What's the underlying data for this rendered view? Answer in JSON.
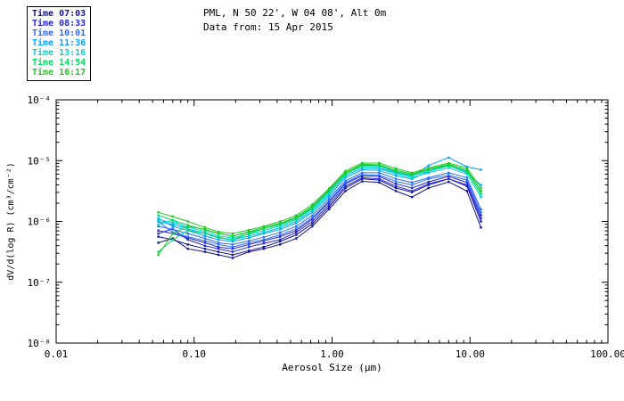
{
  "title": {
    "line1": "PML, N 50 22', W 04 08', Alt 0m",
    "line2": "Data from: 15 Apr 2015"
  },
  "legend": {
    "items": [
      {
        "label": "Time 07:03",
        "color": "#12128f"
      },
      {
        "label": "Time 08:33",
        "color": "#2222dd"
      },
      {
        "label": "Time 10:01",
        "color": "#2b6bff"
      },
      {
        "label": "Time 11:36",
        "color": "#00a2ff"
      },
      {
        "label": "Time 13:16",
        "color": "#00d4c8"
      },
      {
        "label": "Time 14:54",
        "color": "#00d964"
      },
      {
        "label": "Time 16:17",
        "color": "#1fc81f"
      }
    ]
  },
  "chart_data": {
    "type": "line",
    "title": "PML, N 50 22', W 04 08', Alt 0m",
    "subtitle": "Data from: 15 Apr 2015",
    "xlabel": "Aerosol Size (μm)",
    "ylabel": "dV/d(log R) (cm³/cm⁻²)",
    "xscale": "log",
    "yscale": "log",
    "xlim": [
      0.01,
      100
    ],
    "ylim": [
      1e-08,
      0.0001
    ],
    "grid": false,
    "legend_position": "top-left",
    "xticks": [
      {
        "v": 0.01,
        "label": "0.01"
      },
      {
        "v": 0.1,
        "label": "0.10"
      },
      {
        "v": 1,
        "label": "1.00"
      },
      {
        "v": 10,
        "label": "10.00"
      },
      {
        "v": 100,
        "label": "100.00"
      }
    ],
    "yticks": [
      {
        "exp": -4,
        "label": "10⁻⁴"
      },
      {
        "exp": -5,
        "label": "10⁻⁵"
      },
      {
        "exp": -6,
        "label": "10⁻⁶"
      },
      {
        "exp": -7,
        "label": "10⁻⁷"
      },
      {
        "exp": -8,
        "label": "10⁻⁸"
      }
    ],
    "x": [
      0.055,
      0.07,
      0.09,
      0.12,
      0.15,
      0.19,
      0.25,
      0.32,
      0.42,
      0.55,
      0.72,
      0.95,
      1.25,
      1.65,
      2.2,
      2.9,
      3.8,
      5.0,
      7.0,
      9.5,
      12.0
    ],
    "series": [
      {
        "name": "Time 07:03",
        "color": "#12128f",
        "logy": [
          -6.25,
          -6.3,
          -6.38,
          -6.45,
          -6.5,
          -6.55,
          -6.48,
          -6.42,
          -6.33,
          -6.22,
          -6.04,
          -5.76,
          -5.45,
          -5.3,
          -5.32,
          -5.45,
          -5.52,
          -5.4,
          -5.3,
          -5.42,
          -6.0
        ]
      },
      {
        "name": "Time 07:03",
        "color": "#12128f",
        "logy": [
          -6.35,
          -6.28,
          -6.45,
          -6.5,
          -6.55,
          -6.6,
          -6.5,
          -6.45,
          -6.38,
          -6.28,
          -6.08,
          -5.8,
          -5.5,
          -5.34,
          -5.36,
          -5.5,
          -5.6,
          -5.45,
          -5.35,
          -5.5,
          -6.1
        ]
      },
      {
        "name": "Time 08:33",
        "color": "#2222dd",
        "logy": [
          -6.15,
          -6.2,
          -6.27,
          -6.35,
          -6.42,
          -6.45,
          -6.38,
          -6.32,
          -6.25,
          -6.15,
          -5.96,
          -5.68,
          -5.38,
          -5.25,
          -5.26,
          -5.38,
          -5.45,
          -5.35,
          -5.26,
          -5.36,
          -5.9
        ]
      },
      {
        "name": "Time 08:33",
        "color": "#2222dd",
        "logy": [
          -6.2,
          -6.12,
          -6.3,
          -6.4,
          -6.45,
          -6.5,
          -6.42,
          -6.36,
          -6.3,
          -6.18,
          -6.0,
          -5.72,
          -5.42,
          -5.28,
          -5.3,
          -5.42,
          -5.5,
          -5.38,
          -5.3,
          -5.4,
          -5.95
        ]
      },
      {
        "name": "Time 10:01",
        "color": "#2b6bff",
        "logy": [
          -6.08,
          -6.13,
          -6.2,
          -6.28,
          -6.35,
          -6.38,
          -6.32,
          -6.26,
          -6.18,
          -6.08,
          -5.9,
          -5.62,
          -5.33,
          -5.2,
          -5.2,
          -5.3,
          -5.36,
          -5.28,
          -5.2,
          -5.28,
          -5.8
        ]
      },
      {
        "name": "Time 10:01",
        "color": "#2b6bff",
        "logy": [
          -6.0,
          -6.18,
          -6.25,
          -6.32,
          -6.38,
          -6.42,
          -6.35,
          -6.3,
          -6.22,
          -6.12,
          -5.94,
          -5.66,
          -5.36,
          -5.23,
          -5.24,
          -5.34,
          -5.4,
          -5.3,
          -5.24,
          -5.32,
          -5.85
        ]
      },
      {
        "name": "Time 11:36",
        "color": "#00a2ff",
        "logy": [
          -6.0,
          -6.05,
          -6.12,
          -6.2,
          -6.27,
          -6.3,
          -6.24,
          -6.18,
          -6.1,
          -6.0,
          -5.82,
          -5.55,
          -5.25,
          -5.12,
          -5.12,
          -5.2,
          -5.26,
          -5.08,
          -4.95,
          -5.1,
          -5.15
        ]
      },
      {
        "name": "Time 11:36",
        "color": "#00a2ff",
        "logy": [
          -5.95,
          -6.08,
          -6.15,
          -6.24,
          -6.3,
          -6.33,
          -6.27,
          -6.2,
          -6.13,
          -6.03,
          -5.85,
          -5.58,
          -5.28,
          -5.15,
          -5.16,
          -5.25,
          -5.3,
          -5.18,
          -5.08,
          -5.2,
          -5.4
        ]
      },
      {
        "name": "Time 13:16",
        "color": "#00d4c8",
        "logy": [
          -5.97,
          -6.02,
          -6.09,
          -6.17,
          -6.24,
          -6.27,
          -6.21,
          -6.15,
          -6.07,
          -5.97,
          -5.79,
          -5.52,
          -5.22,
          -5.09,
          -5.09,
          -5.19,
          -5.25,
          -5.17,
          -5.09,
          -5.17,
          -5.55
        ]
      },
      {
        "name": "Time 13:16",
        "color": "#00d4c8",
        "logy": [
          -6.05,
          -5.98,
          -6.13,
          -6.2,
          -6.27,
          -6.3,
          -6.24,
          -6.18,
          -6.1,
          -6.0,
          -5.82,
          -5.55,
          -5.25,
          -5.12,
          -5.13,
          -5.22,
          -5.28,
          -5.2,
          -5.12,
          -5.22,
          -5.6
        ]
      },
      {
        "name": "Time 14:54",
        "color": "#00d964",
        "logy": [
          -5.9,
          -5.98,
          -6.06,
          -6.14,
          -6.2,
          -6.24,
          -6.18,
          -6.12,
          -6.04,
          -5.94,
          -5.76,
          -5.49,
          -5.2,
          -5.07,
          -5.07,
          -5.16,
          -5.22,
          -5.14,
          -5.07,
          -5.15,
          -5.5
        ]
      },
      {
        "name": "Time 14:54",
        "color": "#00d964",
        "logy": [
          -6.5,
          -6.3,
          -6.15,
          -6.2,
          -6.26,
          -6.3,
          -6.2,
          -6.12,
          -6.05,
          -5.95,
          -5.78,
          -5.5,
          -5.22,
          -5.08,
          -5.08,
          -5.18,
          -5.24,
          -5.15,
          -5.08,
          -5.18,
          -5.55
        ]
      },
      {
        "name": "Time 16:17",
        "color": "#1fc81f",
        "logy": [
          -5.85,
          -5.92,
          -6.0,
          -6.1,
          -6.17,
          -6.2,
          -6.14,
          -6.08,
          -6.0,
          -5.9,
          -5.72,
          -5.46,
          -5.17,
          -5.04,
          -5.04,
          -5.13,
          -5.2,
          -5.12,
          -5.04,
          -5.12,
          -5.45
        ]
      },
      {
        "name": "Time 16:17",
        "color": "#1fc81f",
        "logy": [
          -6.55,
          -6.2,
          -6.08,
          -6.13,
          -6.2,
          -6.24,
          -6.17,
          -6.1,
          -6.03,
          -5.93,
          -5.75,
          -5.48,
          -5.2,
          -5.06,
          -5.07,
          -5.16,
          -5.22,
          -5.14,
          -5.06,
          -5.15,
          -5.5
        ]
      }
    ]
  }
}
